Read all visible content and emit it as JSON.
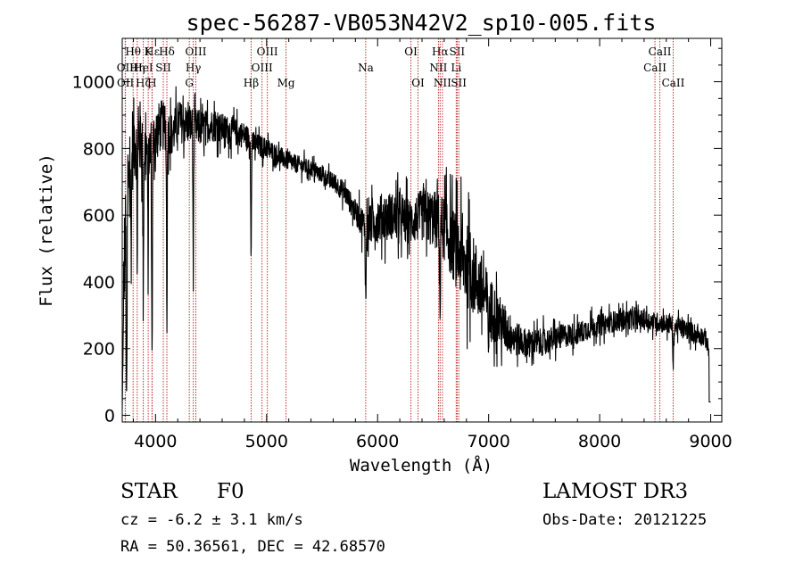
{
  "chart_data": {
    "type": "line",
    "title": "spec-56287-VB053N42V2_sp10-005.fits",
    "xlabel": "Wavelength (Å)",
    "ylabel": "Flux (relative)",
    "xlim": [
      3700,
      9100
    ],
    "ylim": [
      -20,
      1130
    ],
    "x_ticks": [
      4000,
      5000,
      6000,
      7000,
      8000,
      9000
    ],
    "y_ticks": [
      0,
      200,
      400,
      600,
      800,
      1000
    ],
    "grid": false,
    "line_color": "#000000",
    "marker_color": "#c03030",
    "spectrum_envelope": {
      "x": [
        3700,
        3720,
        3760,
        3800,
        3850,
        3900,
        3950,
        4000,
        4050,
        4100,
        4150,
        4200,
        4300,
        4400,
        4500,
        4600,
        4700,
        4800,
        4900,
        5000,
        5100,
        5200,
        5300,
        5400,
        5500,
        5600,
        5700,
        5800,
        5900,
        6000,
        6100,
        6200,
        6300,
        6400,
        6500,
        6600,
        6700,
        6800,
        6900,
        7000,
        7100,
        7200,
        7300,
        7400,
        7500,
        7600,
        7700,
        7800,
        7900,
        8000,
        8100,
        8200,
        8300,
        8400,
        8500,
        8600,
        8700,
        8800,
        8900,
        8960,
        9000
      ],
      "y": [
        150,
        480,
        720,
        820,
        840,
        800,
        790,
        840,
        870,
        860,
        840,
        880,
        870,
        860,
        870,
        860,
        850,
        840,
        810,
        800,
        780,
        760,
        750,
        740,
        720,
        700,
        670,
        610,
        560,
        590,
        600,
        590,
        580,
        600,
        590,
        560,
        500,
        450,
        400,
        330,
        280,
        240,
        220,
        215,
        220,
        230,
        240,
        245,
        260,
        270,
        280,
        285,
        290,
        285,
        280,
        275,
        265,
        255,
        240,
        230,
        150
      ],
      "noise_amplitude": {
        "x": [
          3700,
          3900,
          4100,
          4500,
          5000,
          5500,
          5800,
          6000,
          6300,
          6600,
          6800,
          7000,
          7300,
          7800,
          8500,
          9000
        ],
        "y": [
          200,
          130,
          85,
          60,
          40,
          28,
          45,
          90,
          85,
          120,
          160,
          120,
          55,
          42,
          36,
          36
        ]
      }
    },
    "absorption_features": [
      {
        "x": 3740,
        "depth": 700
      },
      {
        "x": 3780,
        "depth": 300
      },
      {
        "x": 3835,
        "depth": 350
      },
      {
        "x": 3889,
        "depth": 450
      },
      {
        "x": 3933,
        "depth": 350
      },
      {
        "x": 3968,
        "depth": 650
      },
      {
        "x": 4102,
        "depth": 600
      },
      {
        "x": 4340,
        "depth": 450
      },
      {
        "x": 4861,
        "depth": 350
      },
      {
        "x": 5893,
        "depth": 250
      },
      {
        "x": 6563,
        "depth": 300
      },
      {
        "x": 7000,
        "depth": 120
      },
      {
        "x": 8662,
        "depth": 150
      }
    ],
    "line_markers": [
      {
        "label": "Hδ",
        "x": 4102,
        "row": 1
      },
      {
        "label": "OII",
        "x": 3727,
        "row": 2
      },
      {
        "label": "OII",
        "x": 3729,
        "row": 3
      },
      {
        "label": "Hθ",
        "x": 3798,
        "row": 1
      },
      {
        "label": "Hε",
        "x": 3970,
        "row": 1
      },
      {
        "label": "Hη",
        "x": 3835,
        "row": 2
      },
      {
        "label": "Hζ",
        "x": 3889,
        "row": 3
      },
      {
        "label": "HeI",
        "x": 3889,
        "row": 2
      },
      {
        "label": "K",
        "x": 3934,
        "row": 1
      },
      {
        "label": "SII",
        "x": 4070,
        "row": 2
      },
      {
        "label": "H",
        "x": 3968,
        "row": 3
      },
      {
        "label": "OIII",
        "x": 4363,
        "row": 1
      },
      {
        "label": "Hγ",
        "x": 4340,
        "row": 2
      },
      {
        "label": "G",
        "x": 4304,
        "row": 3
      },
      {
        "label": "OIII",
        "x": 5007,
        "row": 1
      },
      {
        "label": "OIII",
        "x": 4959,
        "row": 2
      },
      {
        "label": "Hβ",
        "x": 4861,
        "row": 3
      },
      {
        "label": "Mg",
        "x": 5175,
        "row": 3
      },
      {
        "label": "Na",
        "x": 5893,
        "row": 2
      },
      {
        "label": "OI",
        "x": 6300,
        "row": 1
      },
      {
        "label": "OI",
        "x": 6364,
        "row": 3
      },
      {
        "label": "Hα",
        "x": 6563,
        "row": 1
      },
      {
        "label": "NII",
        "x": 6548,
        "row": 2
      },
      {
        "label": "NII",
        "x": 6584,
        "row": 3
      },
      {
        "label": "SII",
        "x": 6716,
        "row": 1
      },
      {
        "label": "Li",
        "x": 6708,
        "row": 2
      },
      {
        "label": "SII",
        "x": 6731,
        "row": 3
      },
      {
        "label": "CaII",
        "x": 8542,
        "row": 1
      },
      {
        "label": "CaII",
        "x": 8498,
        "row": 2
      },
      {
        "label": "CaII",
        "x": 8662,
        "row": 3
      }
    ]
  },
  "info": {
    "object_class": "STAR",
    "subclass": "F0",
    "survey": "LAMOST DR3",
    "cz": "cz = -6.2 ± 3.1 km/s",
    "obs_date": "Obs-Date: 20121225",
    "coords": "RA =  50.36561, DEC =  42.68570"
  }
}
